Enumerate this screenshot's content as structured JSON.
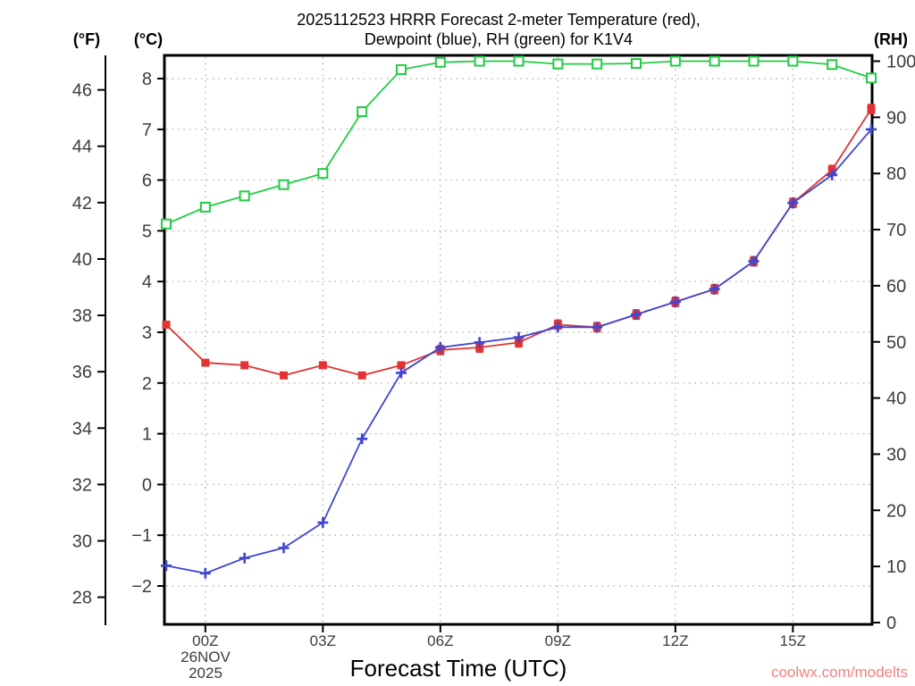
{
  "header": {
    "title_line1": "2025112523 HRRR Forecast 2-meter Temperature (red),",
    "title_line2": "Dewpoint (blue), RH (green) for K1V4",
    "left_axis_fahrenheit_label": "(°F)",
    "left_axis_celsius_label": "(°C)",
    "right_axis_rh_label": "(RH)"
  },
  "footer": {
    "xaxis_label": "Forecast Time (UTC)",
    "date_line1": "26NOV",
    "date_line2": "2025",
    "watermark": "coolwx.com/modelts"
  },
  "chart_data": {
    "type": "line",
    "x_hours": [
      "23Z",
      "00Z",
      "01Z",
      "02Z",
      "03Z",
      "04Z",
      "05Z",
      "06Z",
      "07Z",
      "08Z",
      "09Z",
      "10Z",
      "11Z",
      "12Z",
      "13Z",
      "14Z",
      "15Z",
      "16Z",
      "17Z"
    ],
    "x_tick_indices": [
      1,
      4,
      7,
      10,
      13,
      16
    ],
    "x_tick_labels": [
      "00Z",
      "03Z",
      "06Z",
      "09Z",
      "12Z",
      "15Z"
    ],
    "celsius_axis": {
      "ticks": [
        -2,
        -1,
        0,
        1,
        2,
        3,
        4,
        5,
        6,
        7,
        8
      ]
    },
    "fahrenheit_axis": {
      "ticks": [
        28,
        30,
        32,
        34,
        36,
        38,
        40,
        42,
        44,
        46
      ]
    },
    "rh_axis": {
      "ticks": [
        0,
        10,
        20,
        30,
        40,
        50,
        60,
        70,
        80,
        90,
        100
      ]
    },
    "grid": {
      "horizontal_at_celsius_ticks": true,
      "vertical_at_x_ticks": true
    },
    "legend": "encoded in title: red=temperature, blue=dewpoint, green=RH",
    "series": [
      {
        "name": "2-meter Temperature",
        "unit": "C",
        "axis": "celsius",
        "color": "#e23333",
        "marker": "filled-square",
        "values": [
          3.15,
          2.4,
          2.35,
          2.15,
          2.35,
          2.15,
          2.35,
          2.65,
          2.7,
          2.8,
          3.15,
          3.1,
          3.35,
          3.6,
          3.85,
          4.4,
          5.55,
          6.2,
          7.4
        ],
        "error_bar_indices": [
          7,
          8,
          9,
          10,
          11,
          12,
          13,
          14,
          15,
          16,
          17,
          18
        ],
        "error_bar_halfwidth_c": 0.09
      },
      {
        "name": "Dewpoint",
        "unit": "C",
        "axis": "celsius",
        "color": "#3f46d0",
        "marker": "plus",
        "values": [
          -1.6,
          -1.75,
          -1.45,
          -1.25,
          -0.75,
          0.9,
          2.2,
          2.7,
          2.8,
          2.9,
          3.1,
          3.1,
          3.35,
          3.6,
          3.85,
          4.4,
          5.55,
          6.1,
          7.0
        ]
      },
      {
        "name": "RH",
        "unit": "%",
        "axis": "rh",
        "color": "#22cc44",
        "marker": "open-square",
        "values": [
          71,
          74,
          76,
          78,
          80,
          91,
          98.5,
          99.8,
          100,
          100,
          99.5,
          99.5,
          99.6,
          100,
          100,
          100,
          100,
          99.4,
          97
        ]
      }
    ],
    "colors": {
      "axis": "#000000",
      "tick_label": "#3c3c3c",
      "grid": "#b3b3b3",
      "watermark": "#f28080"
    }
  }
}
